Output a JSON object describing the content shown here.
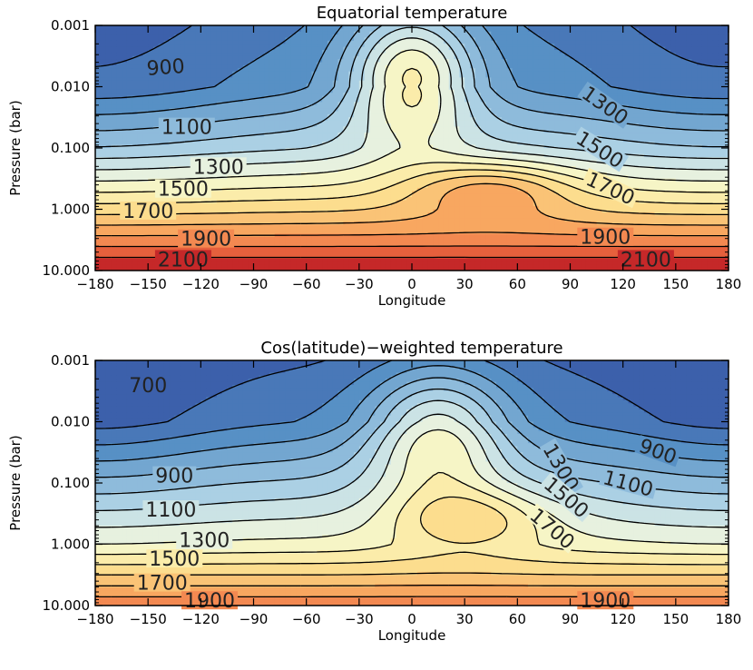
{
  "chart_data": [
    {
      "type": "heatmap",
      "title": "Equatorial temperature",
      "xlabel": "Longitude",
      "ylabel": "Pressure (bar)",
      "xlim": [
        -180,
        180
      ],
      "ylim": [
        0.001,
        10.0
      ],
      "yscale": "log",
      "y_reversed": true,
      "xticks": [
        -180,
        -150,
        -120,
        -90,
        -60,
        -30,
        0,
        30,
        60,
        90,
        120,
        150,
        180
      ],
      "yticks": [
        "0.001",
        "0.010",
        "0.100",
        "1.000",
        "10.000"
      ],
      "xtick_labels": [
        "−180",
        "−150",
        "−120",
        "−90",
        "−60",
        "−30",
        "0",
        "30",
        "60",
        "90",
        "120",
        "150",
        "180"
      ],
      "colormap": "blue-yellow-red",
      "color_range": [
        600,
        2200
      ],
      "contour_levels": [
        700,
        800,
        900,
        1000,
        1100,
        1200,
        1300,
        1400,
        1500,
        1600,
        1700,
        1800,
        1900,
        2000,
        2100
      ],
      "contour_labels": [
        {
          "text": "900",
          "x": -140,
          "p": 0.0047,
          "angle": -4
        },
        {
          "text": "1100",
          "x": -128,
          "p": 0.045,
          "angle": 0
        },
        {
          "text": "1300",
          "x": -110,
          "p": 0.2,
          "angle": 0
        },
        {
          "text": "1500",
          "x": -130,
          "p": 0.46,
          "angle": 0
        },
        {
          "text": "1700",
          "x": -150,
          "p": 1.05,
          "angle": 0
        },
        {
          "text": "1900",
          "x": -117,
          "p": 3.0,
          "angle": 0
        },
        {
          "text": "2100",
          "x": -130,
          "p": 6.5,
          "angle": 0
        },
        {
          "text": "1300",
          "x": 110,
          "p": 0.02,
          "angle": 35
        },
        {
          "text": "1500",
          "x": 107,
          "p": 0.105,
          "angle": 32
        },
        {
          "text": "1700",
          "x": 113,
          "p": 0.45,
          "angle": 25
        },
        {
          "text": "1900",
          "x": 110,
          "p": 2.8,
          "angle": 0
        },
        {
          "text": "2100",
          "x": 133,
          "p": 6.5,
          "angle": 0
        }
      ],
      "field": {
        "base": [
          [
            -3.0,
            800
          ],
          [
            -2.0,
            880
          ],
          [
            -1.0,
            1200
          ],
          [
            0.0,
            1680
          ],
          [
            0.5,
            1940
          ],
          [
            1.0,
            2220
          ]
        ],
        "west": {
          "center": -155,
          "width": 70,
          "amp": -110
        },
        "east": {
          "center": 145,
          "width": 60,
          "amp": -80
        },
        "plume": {
          "center": 0,
          "width": 35,
          "amp": 650,
          "pcenter": -2.2,
          "pwidth": 1.1
        },
        "hot": {
          "center": 45,
          "width": 45,
          "amp": 320,
          "pcenter": -0.35,
          "pwidth": 0.45
        }
      }
    },
    {
      "type": "heatmap",
      "title": "Cos(latitude)−weighted temperature",
      "xlabel": "Longitude",
      "ylabel": "Pressure (bar)",
      "xlim": [
        -180,
        180
      ],
      "ylim": [
        0.001,
        10.0
      ],
      "yscale": "log",
      "y_reversed": true,
      "xticks": [
        -180,
        -150,
        -120,
        -90,
        -60,
        -30,
        0,
        30,
        60,
        90,
        120,
        150,
        180
      ],
      "yticks": [
        "0.001",
        "0.010",
        "0.100",
        "1.000",
        "10.000"
      ],
      "xtick_labels": [
        "−180",
        "−150",
        "−120",
        "−90",
        "−60",
        "−30",
        "0",
        "30",
        "60",
        "90",
        "120",
        "150",
        "180"
      ],
      "colormap": "blue-yellow-red",
      "color_range": [
        600,
        2200
      ],
      "contour_levels": [
        700,
        800,
        900,
        1000,
        1100,
        1200,
        1300,
        1400,
        1500,
        1600,
        1700,
        1800,
        1900
      ],
      "contour_labels": [
        {
          "text": "700",
          "x": -150,
          "p": 0.0025,
          "angle": 0
        },
        {
          "text": "900",
          "x": -135,
          "p": 0.075,
          "angle": 0
        },
        {
          "text": "1100",
          "x": -137,
          "p": 0.27,
          "angle": 0
        },
        {
          "text": "1300",
          "x": -118,
          "p": 0.85,
          "angle": 0
        },
        {
          "text": "1500",
          "x": -135,
          "p": 1.7,
          "angle": 0
        },
        {
          "text": "1700",
          "x": -142,
          "p": 4.2,
          "angle": 0
        },
        {
          "text": "1900",
          "x": -115,
          "p": 8.2,
          "angle": 0
        },
        {
          "text": "900",
          "x": 140,
          "p": 0.03,
          "angle": 20
        },
        {
          "text": "1100",
          "x": 123,
          "p": 0.1,
          "angle": 15
        },
        {
          "text": "1300",
          "x": 85,
          "p": 0.055,
          "angle": 60
        },
        {
          "text": "1500",
          "x": 88,
          "p": 0.17,
          "angle": 40
        },
        {
          "text": "1700",
          "x": 80,
          "p": 0.55,
          "angle": 40
        },
        {
          "text": "1900",
          "x": 110,
          "p": 8.2,
          "angle": 0
        }
      ],
      "field": {
        "base": [
          [
            -3.0,
            690
          ],
          [
            -2.0,
            800
          ],
          [
            -1.0,
            1120
          ],
          [
            0.0,
            1430
          ],
          [
            0.5,
            1700
          ],
          [
            1.0,
            1980
          ]
        ],
        "west": {
          "center": -160,
          "width": 60,
          "amp": -90
        },
        "east": {
          "center": 160,
          "width": 55,
          "amp": -70
        },
        "plume": {
          "center": 15,
          "width": 40,
          "amp": 560,
          "pcenter": -1.8,
          "pwidth": 1.1
        },
        "hot": {
          "center": 35,
          "width": 45,
          "amp": 300,
          "pcenter": -0.45,
          "pwidth": 0.5
        }
      }
    }
  ]
}
